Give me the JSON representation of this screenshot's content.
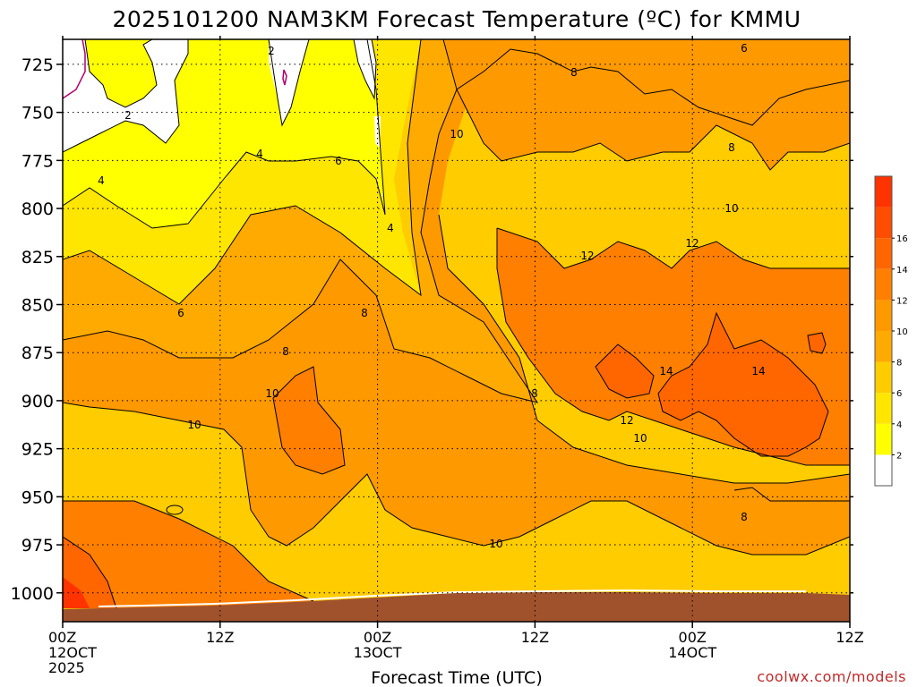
{
  "title": "2025101200 NAM3KM Forecast Temperature (ºC) for KMMU",
  "xlabel": "Forecast Time (UTC)",
  "credit": "coolwx.com/models",
  "y_ticks": [
    "725",
    "750",
    "775",
    "800",
    "825",
    "850",
    "875",
    "900",
    "925",
    "950",
    "975",
    "1000"
  ],
  "x_ticks": [
    {
      "top": "00Z",
      "line2": "12OCT",
      "line3": "2025"
    },
    {
      "top": "12Z",
      "line2": "",
      "line3": ""
    },
    {
      "top": "00Z",
      "line2": "13OCT",
      "line3": ""
    },
    {
      "top": "12Z",
      "line2": "",
      "line3": ""
    },
    {
      "top": "00Z",
      "line2": "14OCT",
      "line3": ""
    },
    {
      "top": "12Z",
      "line2": "",
      "line3": ""
    }
  ],
  "colorbar": {
    "levels": [
      "2",
      "4",
      "6",
      "8",
      "10",
      "12",
      "14",
      "16"
    ],
    "colors": [
      "#ffffff",
      "#ffff00",
      "#ffe600",
      "#ffcc00",
      "#ffaa00",
      "#ff9900",
      "#ff7f00",
      "#ff6600",
      "#ff4d00",
      "#ff3300"
    ]
  },
  "contour_labels": [
    "2",
    "4",
    "4",
    "6",
    "6",
    "8",
    "8",
    "8",
    "8",
    "10",
    "10",
    "10",
    "10",
    "10",
    "12",
    "12",
    "12",
    "14",
    "14",
    "6",
    "8",
    "8",
    "10"
  ],
  "chart_data": {
    "type": "heatmap",
    "title": "2025101200 NAM3KM Forecast Temperature (ºC) for KMMU",
    "xlabel": "Forecast Time (UTC)",
    "ylabel": "",
    "x_ticks": [
      "00Z 12OCT 2025",
      "12Z",
      "00Z 13OCT",
      "12Z",
      "00Z 14OCT",
      "12Z"
    ],
    "x_hours": [
      0,
      12,
      24,
      36,
      48,
      60
    ],
    "xlim": [
      0,
      60
    ],
    "y_ticks": [
      725,
      750,
      775,
      800,
      825,
      850,
      875,
      900,
      925,
      950,
      975,
      1000
    ],
    "ylim": [
      1015,
      712
    ],
    "grid": true,
    "contour_levels": [
      2,
      4,
      6,
      8,
      10,
      12,
      14,
      16
    ],
    "approx_temperature_field": {
      "hours": [
        0,
        6,
        12,
        18,
        24,
        30,
        36,
        42,
        48,
        54,
        60
      ],
      "pressures": [
        725,
        775,
        825,
        875,
        925,
        975,
        1000
      ],
      "values": [
        [
          1,
          2,
          3,
          2,
          3,
          8,
          8,
          8,
          7,
          6,
          6
        ],
        [
          4,
          4,
          5,
          5,
          5,
          9,
          10,
          10,
          9,
          9,
          8
        ],
        [
          6,
          7,
          7,
          7,
          6,
          10,
          12,
          12,
          12,
          11,
          11
        ],
        [
          8,
          8,
          9,
          9,
          8,
          9,
          12,
          14,
          14,
          14,
          13
        ],
        [
          11,
          11,
          10,
          10,
          10,
          10,
          10,
          11,
          12,
          13,
          10
        ],
        [
          12,
          12,
          11,
          11,
          11,
          11,
          10,
          10,
          10,
          9,
          9
        ],
        [
          15,
          13,
          12,
          12,
          12,
          12,
          12,
          12,
          12,
          12,
          12
        ]
      ]
    }
  }
}
